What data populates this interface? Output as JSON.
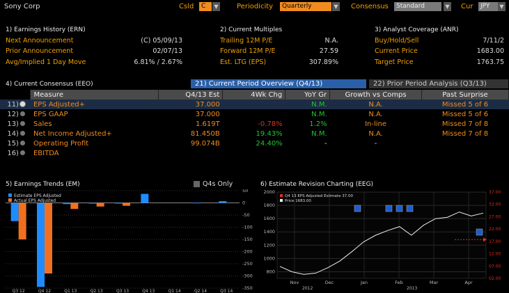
{
  "header": {
    "title": "Sony Corp",
    "csld_label": "Csld",
    "csld_value": "C",
    "periodicity_label": "Periodicity",
    "periodicity_value": "Quarterly",
    "consensus_label": "Consensus",
    "consensus_value": "Standard",
    "cur_label": "Cur",
    "cur_value": "JPY"
  },
  "earnings_history": {
    "heading": "1) Earnings History (ERN)",
    "rows": [
      {
        "label": "Next Announcement",
        "value": "(C)  05/09/13"
      },
      {
        "label": "Prior Announcement",
        "value": "02/07/13"
      },
      {
        "label": "Avg/Implied 1 Day Move",
        "value": "6.81% / 2.67%"
      }
    ]
  },
  "current_multiples": {
    "heading": "2) Current Multiples",
    "rows": [
      {
        "label": "Trailing 12M P/E",
        "value": "N.A."
      },
      {
        "label": "Forward 12M P/E",
        "value": "27.59"
      },
      {
        "label": "Est. LTG (EPS)",
        "value": "307.89%"
      }
    ]
  },
  "analyst_coverage": {
    "heading": "3) Analyst Coverage (ANR)",
    "rows": [
      {
        "label": "Buy/Hold/Sell",
        "value": "7/11/2"
      },
      {
        "label": "Current Price",
        "value": "1683.00"
      },
      {
        "label": "Target Price",
        "value": "1763.75"
      }
    ]
  },
  "consensus": {
    "heading": "4) Current Consensus (EEO)",
    "tab_current": "21) Current Period Overview (Q4/13)",
    "tab_prior": "22) Prior Period Analysis (Q3/13)",
    "columns": [
      "Measure",
      "Q4/13 Est",
      "4Wk Chg",
      "YoY Gr",
      "Growth vs Comps",
      "Past Surprise"
    ],
    "rows": [
      {
        "num": "11)",
        "measure": "EPS Adjusted+",
        "est": "37.000",
        "chg": "",
        "yoy": "N.M.",
        "comps": "N.A.",
        "surprise": "Missed 5 of 6"
      },
      {
        "num": "12)",
        "measure": "EPS GAAP",
        "est": "37.000",
        "chg": "",
        "yoy": "N.M.",
        "comps": "N.A.",
        "surprise": "Missed 5 of 6"
      },
      {
        "num": "13)",
        "measure": "Sales",
        "est": "1.619T",
        "chg": "-0.78%",
        "yoy": "1.2%",
        "comps": "In-line",
        "surprise": "Missed 7 of 8"
      },
      {
        "num": "14)",
        "measure": "Net Income Adjusted+",
        "est": "81.450B",
        "chg": "19.43%",
        "yoy": "N.M.",
        "comps": "N.A.",
        "surprise": "Missed 7 of 8"
      },
      {
        "num": "15)",
        "measure": "Operating Profit",
        "est": "99.074B",
        "chg": "24.40%",
        "yoy": "-",
        "comps": "-",
        "surprise": ""
      },
      {
        "num": "16)",
        "measure": "EBITDA",
        "est": "",
        "chg": "",
        "yoy": "",
        "comps": "",
        "surprise": ""
      }
    ]
  },
  "earnings_trends": {
    "heading": "5) Earnings Trends (EM)",
    "q4s_only_label": "Q4s Only"
  },
  "revision_chart": {
    "heading": "6) Estimate Revision Charting (EEG)"
  },
  "chart_data": [
    {
      "type": "bar",
      "legend": [
        "Estimate EPS Adjusted",
        "Actual EPS Adjusted"
      ],
      "categories": [
        "Q3 12",
        "Q4 12",
        "Q1 13",
        "Q2 13",
        "Q3 13",
        "Q4 13",
        "Q1 14",
        "Q2 14",
        "Q3 14"
      ],
      "series": [
        {
          "name": "Estimate EPS Adjusted",
          "color": "#1e8cff",
          "values": [
            -75,
            -345,
            -5,
            -3,
            -2,
            37,
            null,
            1,
            7
          ]
        },
        {
          "name": "Actual EPS Adjusted",
          "color": "#f07020",
          "values": [
            -150,
            -290,
            -25,
            -15,
            -12,
            null,
            null,
            null,
            null
          ]
        }
      ],
      "y_ticks": [
        "50",
        "0",
        "-50",
        "-100",
        "-150",
        "-200",
        "-250",
        "-300",
        "-350"
      ],
      "ylim": [
        -350,
        50
      ],
      "legend_position": "top-left"
    },
    {
      "type": "line",
      "legend": [
        "Q4 13 EPS Adjusted Estimate 37.00",
        "Price 1683.00"
      ],
      "x_ticks": [
        "Nov",
        "Dec",
        "Jan",
        "Feb",
        "Mar",
        "Apr"
      ],
      "x_years": [
        "2012",
        "2013"
      ],
      "y_left_ticks": [
        "2000",
        "1800",
        "1600",
        "1400",
        "1200",
        "1000",
        "800"
      ],
      "y_right_ticks": [
        "37.00",
        "32.00",
        "27.00",
        "22.00",
        "17.00",
        "12.00",
        "07.00",
        "02.00"
      ],
      "price_ylim": [
        700,
        2000
      ],
      "price_series": [
        {
          "x": "Nov 01",
          "y": 880
        },
        {
          "x": "Nov 10",
          "y": 800
        },
        {
          "x": "Nov 20",
          "y": 760
        },
        {
          "x": "Dec 01",
          "y": 780
        },
        {
          "x": "Dec 15",
          "y": 860
        },
        {
          "x": "Dec 28",
          "y": 960
        },
        {
          "x": "Jan 05",
          "y": 1100
        },
        {
          "x": "Jan 15",
          "y": 1250
        },
        {
          "x": "Jan 25",
          "y": 1350
        },
        {
          "x": "Feb 05",
          "y": 1420
        },
        {
          "x": "Feb 15",
          "y": 1480
        },
        {
          "x": "Feb 25",
          "y": 1350
        },
        {
          "x": "Mar 05",
          "y": 1500
        },
        {
          "x": "Mar 15",
          "y": 1600
        },
        {
          "x": "Mar 25",
          "y": 1620
        },
        {
          "x": "Apr 05",
          "y": 1700
        },
        {
          "x": "Apr 15",
          "y": 1640
        },
        {
          "x": "Apr 25",
          "y": 1683
        }
      ],
      "estimate_value": 37.0,
      "estimate_color": "#e0301e",
      "price_color": "#eeeeee"
    }
  ]
}
